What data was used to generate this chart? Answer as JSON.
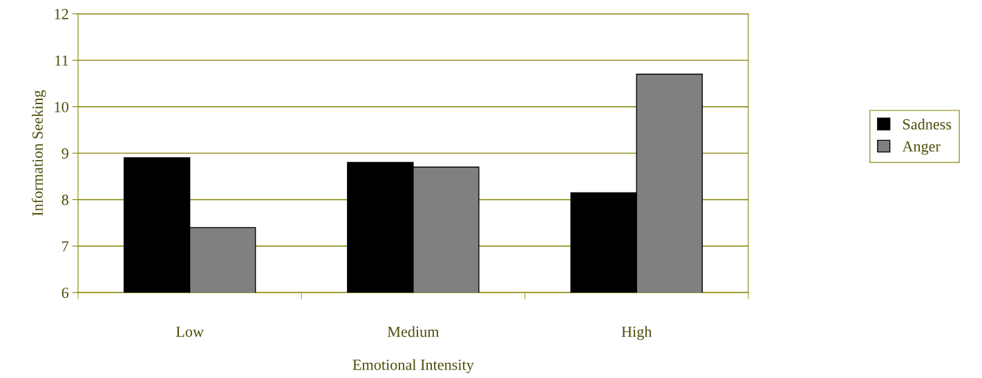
{
  "chart_data": {
    "type": "bar",
    "xlabel": "Emotional Intensity",
    "ylabel": "Information Seeking",
    "categories": [
      "Low",
      "Medium",
      "High"
    ],
    "series": [
      {
        "name": "Sadness",
        "color": "#000000",
        "values": [
          8.9,
          8.8,
          8.15
        ]
      },
      {
        "name": "Anger",
        "color": "#808080",
        "values": [
          7.4,
          8.7,
          10.7
        ]
      }
    ],
    "ylim": [
      6,
      12
    ],
    "yticks": [
      6,
      7,
      8,
      9,
      10,
      11,
      12
    ],
    "grid": "y",
    "legend": "right"
  }
}
